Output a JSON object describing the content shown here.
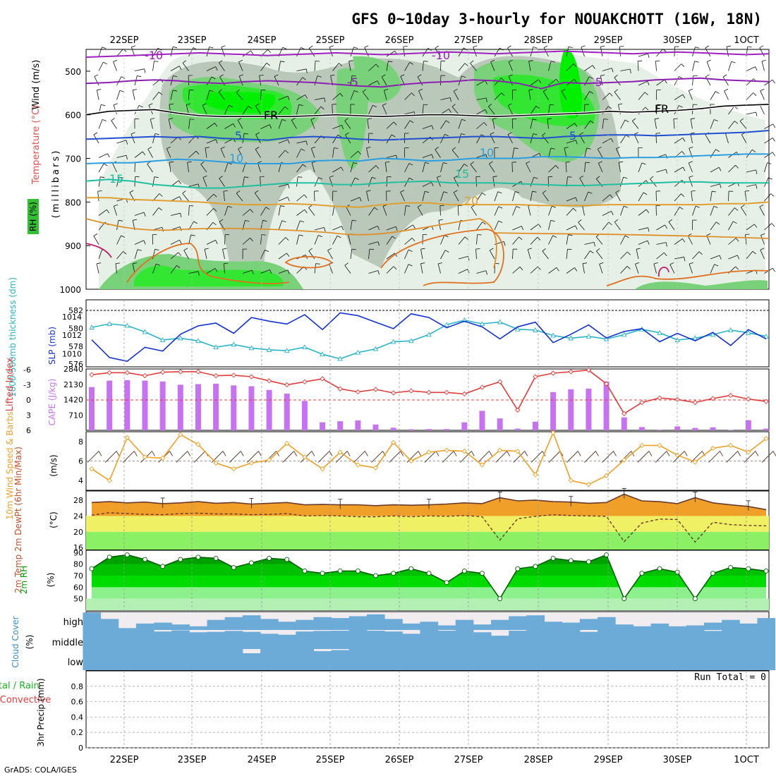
{
  "title": "GFS 0~10day 3-hourly for NOUAKCHOTT (16W, 18N)",
  "credit": "GrADS: COLA/IGES",
  "date_labels": [
    "22SEP",
    "23SEP",
    "24SEP",
    "25SEP",
    "26SEP",
    "27SEP",
    "28SEP",
    "29SEP",
    "30SEP",
    "1OCT"
  ],
  "colors": {
    "rh_light": "#e6f0e6",
    "rh_mid": "#b9c8b9",
    "rh_dark": "#79d279",
    "rh_high": "#32e632",
    "rh_max": "#00f000",
    "cape_bar": "#c573f0",
    "slp_line": "#1432d2",
    "thickness_line": "#2ab4c8",
    "li_line": "#e23c3c",
    "wind_line": "#f0a028",
    "temp_fill": "#f0a028",
    "dewpt_band1": "#f0f064",
    "dewpt_band2": "#8cf064",
    "rh_fill_dark": "#00a000",
    "rh_fill_mid": "#00dc00",
    "rh_fill_light": "#8cf08c",
    "cloud": "#6cabd8",
    "cloud_clear": "#f0ecf0"
  },
  "panels": {
    "upper_air": {
      "ylabel_wind": "Wind (m/s)",
      "ylabel_temp": "Temperature (°C)",
      "ylabel_rh": "RH (%)",
      "ylabel_unit": "(millibars)",
      "levels": [
        500,
        600,
        700,
        800,
        900,
        1000
      ],
      "isotherm_labels": [
        {
          "text": "-10",
          "t": 0.08
        },
        {
          "text": "-10",
          "t": 0.5
        },
        {
          "text": "-5",
          "t": 0.37
        },
        {
          "text": "-5",
          "t": 0.72
        },
        {
          "text": "FR",
          "t": 0.27
        },
        {
          "text": "FR",
          "t": 0.84
        },
        {
          "text": "-5",
          "t": 0.21
        },
        {
          "text": "-5",
          "t": 0.7
        },
        {
          "text": "10",
          "t": 0.22
        },
        {
          "text": "10",
          "t": 0.57
        },
        {
          "text": "15",
          "t": 0.04
        },
        {
          "text": "15",
          "t": 0.54
        },
        {
          "text": "20",
          "t": 0.56
        }
      ],
      "isotherms": [
        {
          "label": "-10",
          "color": "#a020c0",
          "pressure": [
            468,
            466,
            464,
            462,
            460,
            458,
            460,
            462,
            464,
            462,
            460,
            458,
            460,
            462,
            460,
            458,
            456,
            458,
            460,
            458,
            456,
            454,
            456,
            458,
            460,
            458,
            456,
            458,
            460,
            462,
            460
          ]
        },
        {
          "label": "-5",
          "color": "#8b20b0",
          "pressure": [
            528,
            526,
            522,
            520,
            522,
            526,
            528,
            524,
            522,
            524,
            526,
            530,
            534,
            536,
            530,
            526,
            524,
            520,
            522,
            528,
            540,
            526,
            528,
            526,
            524,
            520,
            518,
            516,
            520,
            522,
            524
          ]
        },
        {
          "label": "FR",
          "color": "#000000",
          "pressure": [
            600,
            592,
            590,
            588,
            596,
            602,
            604,
            604,
            604,
            604,
            602,
            600,
            602,
            604,
            602,
            600,
            600,
            602,
            604,
            602,
            600,
            598,
            596,
            592,
            594,
            592,
            590,
            586,
            580,
            578,
            576
          ]
        },
        {
          "label": "5",
          "color": "#2050d0",
          "pressure": [
            656,
            654,
            652,
            650,
            652,
            650,
            654,
            656,
            658,
            652,
            650,
            652,
            656,
            658,
            656,
            654,
            652,
            650,
            650,
            652,
            654,
            650,
            648,
            646,
            646,
            648,
            646,
            644,
            642,
            640,
            636
          ]
        },
        {
          "label": "10",
          "color": "#2a9ee0",
          "pressure": [
            712,
            710,
            710,
            706,
            702,
            704,
            708,
            712,
            712,
            712,
            706,
            704,
            706,
            700,
            702,
            706,
            704,
            700,
            700,
            700,
            696,
            696,
            698,
            700,
            698,
            698,
            696,
            694,
            692,
            690,
            690
          ]
        },
        {
          "label": "15",
          "color": "#20c0a0",
          "pressure": [
            752,
            748,
            752,
            760,
            764,
            768,
            768,
            764,
            760,
            756,
            756,
            760,
            760,
            756,
            754,
            752,
            756,
            756,
            756,
            758,
            760,
            762,
            762,
            760,
            758,
            756,
            754,
            754,
            756,
            756,
            756
          ]
        },
        {
          "label": "20",
          "color": "#e0a030",
          "pressure": [
            790,
            790,
            794,
            796,
            798,
            800,
            804,
            806,
            806,
            804,
            806,
            810,
            812,
            806,
            802,
            802,
            806,
            806,
            806,
            806,
            808,
            808,
            808,
            806,
            806,
            806,
            806,
            806,
            804,
            804,
            800
          ]
        }
      ]
    },
    "thickness_slp": {
      "ylabel_left": "1000-500mb thickness (dm)",
      "ylabel_right": "SLP (mb)",
      "left_ticks": [
        576,
        578,
        580,
        582
      ],
      "right_ticks": [
        1010,
        1012,
        1014
      ]
    },
    "cape_li": {
      "ylabel_left": "Lifted Index",
      "ylabel_right": "CAPE (J/kg)",
      "li_ticks": [
        -6,
        -3,
        0,
        3,
        6
      ],
      "cape_ticks": [
        710,
        1420,
        2130,
        2840
      ]
    },
    "wind10m": {
      "ylabel": "10m Wind Speed & Barbs",
      "unit": "(m/s)",
      "ticks": [
        4,
        6,
        8
      ]
    },
    "temp2m": {
      "ylabel": "2m Temp 2m DewPt (6hr Min/Max)",
      "unit": "(°C)",
      "ticks": [
        16,
        20,
        24,
        28
      ]
    },
    "rh2m": {
      "ylabel": "2m RH",
      "unit": "(%)",
      "ticks": [
        50,
        60,
        70,
        80,
        90
      ]
    },
    "cloud": {
      "ylabel": "Cloud Cover",
      "unit": "(%)",
      "levels": [
        "high",
        "middle",
        "low"
      ]
    },
    "precip": {
      "ylabel_a": "Total / Rain",
      "ylabel_b": "Convective",
      "unit": "3hr Precip (mm)",
      "ticks": [
        0,
        0.2,
        0.4,
        0.6,
        0.8
      ],
      "run_total": "Run Total = 0"
    }
  },
  "chart_data": {
    "type": "line",
    "title": "GFS 0~10day 3-hourly for NOUAKCHOTT (16W, 18N)",
    "x": [
      "21SEP21",
      "22SEP00",
      "22SEP06",
      "22SEP12",
      "22SEP18",
      "23SEP00",
      "23SEP06",
      "23SEP12",
      "23SEP18",
      "24SEP00",
      "24SEP06",
      "24SEP12",
      "24SEP18",
      "25SEP00",
      "25SEP06",
      "25SEP12",
      "25SEP18",
      "26SEP00",
      "26SEP06",
      "26SEP12",
      "26SEP18",
      "27SEP00",
      "27SEP06",
      "27SEP12",
      "27SEP18",
      "28SEP00",
      "28SEP06",
      "28SEP12",
      "28SEP18",
      "29SEP00",
      "29SEP06",
      "29SEP12",
      "29SEP18",
      "30SEP00",
      "30SEP06",
      "30SEP12",
      "30SEP18",
      "1OCT00",
      "1OCT06"
    ],
    "series": [
      {
        "name": "SLP (mb)",
        "values": [
          1011.5,
          1009.6,
          1009.2,
          1010.7,
          1010.3,
          1012.1,
          1013.0,
          1013.3,
          1012.2,
          1013.9,
          1013.5,
          1013.2,
          1014.2,
          1012.6,
          1014.4,
          1014.1,
          1013.4,
          1012.7,
          1014.3,
          1013.9,
          1012.8,
          1013.5,
          1012.9,
          1011.6,
          1012.9,
          1013.4,
          1011.2,
          1012.1,
          1013.1,
          1011.7,
          1012.4,
          1012.7,
          1011.3,
          1012.2,
          1011.4,
          1012.3,
          1010.9,
          1012.6,
          1011.6
        ]
      },
      {
        "name": "1000-500mb thickness (dm)",
        "values": [
          580.1,
          580.5,
          580.3,
          579.6,
          578.7,
          578.9,
          578.6,
          577.9,
          578.2,
          577.8,
          577.6,
          577.5,
          577.9,
          577.1,
          576.6,
          577.3,
          577.7,
          578.5,
          578.6,
          579.3,
          580.4,
          580.9,
          580.5,
          580.7,
          579.9,
          579.8,
          579.2,
          578.9,
          579.1,
          578.8,
          579.3,
          579.9,
          579.5,
          578.7,
          578.9,
          579.3,
          579.8,
          579.5,
          579.1
        ]
      },
      {
        "name": "CAPE (J/kg)",
        "values": [
          2000,
          2300,
          2320,
          2300,
          2260,
          2110,
          2140,
          2160,
          2080,
          2040,
          1870,
          1700,
          1360,
          370,
          420,
          460,
          270,
          120,
          50,
          60,
          60,
          370,
          900,
          550,
          80,
          400,
          1770,
          1900,
          1930,
          2260,
          600,
          150,
          30,
          180,
          110,
          140,
          20,
          470,
          80
        ]
      },
      {
        "name": "Lifted Index",
        "values": [
          -5.0,
          -5.4,
          -5.4,
          -4.8,
          -5.5,
          -5.6,
          -5.6,
          -4.8,
          -4.9,
          -4.6,
          -3.8,
          -3.0,
          -3.6,
          -4.2,
          -2.2,
          -1.6,
          -2.1,
          -1.4,
          -1.8,
          -1.5,
          -1.5,
          -1.2,
          -2.5,
          -3.6,
          2.0,
          -4.6,
          -5.3,
          -5.6,
          -5.9,
          -3.2,
          2.7,
          0.5,
          -0.4,
          -0.1,
          0.5,
          -0.3,
          -0.9,
          -0.2,
          0.3
        ]
      },
      {
        "name": "10m Wind Speed (m/s)",
        "values": [
          5.2,
          4.0,
          8.4,
          6.4,
          6.3,
          8.7,
          7.7,
          5.8,
          5.2,
          5.8,
          6.1,
          7.8,
          6.4,
          5.2,
          6.9,
          5.6,
          5.3,
          7.9,
          6.0,
          6.9,
          7.1,
          7.0,
          5.6,
          7.1,
          7.0,
          4.6,
          8.9,
          4.0,
          3.6,
          4.5,
          6.1,
          7.6,
          7.6,
          6.6,
          5.9,
          7.3,
          7.6,
          6.9,
          8.3
        ]
      },
      {
        "name": "2m Temperature (°C)",
        "values": [
          27.4,
          27.6,
          27.3,
          27.5,
          27.1,
          27.3,
          27.6,
          27.2,
          27.4,
          27.0,
          27.2,
          27.4,
          26.8,
          26.9,
          26.8,
          26.8,
          26.6,
          26.8,
          26.7,
          26.8,
          27.0,
          27.3,
          27.1,
          28.6,
          27.8,
          28.0,
          27.6,
          27.5,
          27.2,
          27.4,
          29.5,
          27.8,
          27.6,
          27.1,
          28.6,
          27.3,
          26.8,
          26.4,
          25.6
        ]
      },
      {
        "name": "2m Dew Point (°C)",
        "values": [
          24.2,
          24.8,
          24.6,
          24.4,
          24.3,
          24.6,
          24.7,
          24.5,
          24.5,
          24.3,
          24.4,
          24.6,
          24.0,
          24.1,
          24.0,
          23.8,
          23.8,
          24.0,
          23.8,
          24.0,
          23.9,
          24.1,
          23.8,
          17.9,
          23.3,
          23.9,
          24.3,
          24.1,
          24.0,
          23.9,
          17.5,
          22.2,
          23.2,
          23.1,
          17.4,
          22.4,
          21.8,
          21.6,
          21.5
        ]
      },
      {
        "name": "2m RH (%)",
        "values": [
          76,
          86,
          88,
          84,
          78,
          84,
          86,
          85,
          77,
          81,
          85,
          84,
          74,
          72,
          74,
          74,
          70,
          72,
          76,
          72,
          64,
          74,
          72,
          50,
          76,
          78,
          85,
          83,
          82,
          88,
          50,
          72,
          76,
          73,
          50,
          72,
          77,
          76,
          74
        ]
      },
      {
        "name": "Cloud Cover high (%)",
        "values": [
          95,
          60,
          10,
          35,
          40,
          30,
          20,
          55,
          70,
          80,
          60,
          45,
          55,
          70,
          65,
          75,
          85,
          60,
          35,
          45,
          25,
          55,
          30,
          55,
          75,
          80,
          45,
          40,
          60,
          70,
          30,
          20,
          35,
          20,
          25,
          40,
          55,
          35,
          65
        ]
      },
      {
        "name": "Cloud Cover middle (%)",
        "values": [
          100,
          100,
          100,
          100,
          92,
          98,
          88,
          90,
          95,
          90,
          80,
          75,
          92,
          95,
          96,
          100,
          96,
          92,
          80,
          100,
          96,
          100,
          88,
          70,
          96,
          100,
          100,
          100,
          90,
          100,
          100,
          100,
          100,
          100,
          100,
          95,
          100,
          100,
          100
        ]
      },
      {
        "name": "Cloud Cover low (%)",
        "values": [
          100,
          100,
          100,
          100,
          100,
          100,
          100,
          100,
          100,
          80,
          100,
          100,
          100,
          90,
          95,
          100,
          100,
          100,
          100,
          100,
          100,
          100,
          100,
          100,
          100,
          100,
          100,
          100,
          100,
          100,
          100,
          100,
          100,
          100,
          100,
          100,
          100,
          100,
          100
        ]
      },
      {
        "name": "3hr Precip (mm)",
        "values": [
          0,
          0,
          0,
          0,
          0,
          0,
          0,
          0,
          0,
          0,
          0,
          0,
          0,
          0,
          0,
          0,
          0,
          0,
          0,
          0,
          0,
          0,
          0,
          0,
          0,
          0,
          0,
          0,
          0,
          0,
          0,
          0,
          0,
          0,
          0,
          0,
          0,
          0,
          0
        ]
      }
    ],
    "xlabel": "",
    "ylim_slp": [
      1008,
      1016
    ],
    "ylim_thickness": [
      576,
      582
    ],
    "ylim_cape": [
      0,
      2840
    ],
    "ylim_li": [
      6,
      -6
    ],
    "ylim_wind": [
      3,
      9
    ],
    "ylim_temp": [
      16,
      30
    ],
    "ylim_rh": [
      40,
      90
    ],
    "ylim_precip": [
      0,
      1
    ]
  }
}
